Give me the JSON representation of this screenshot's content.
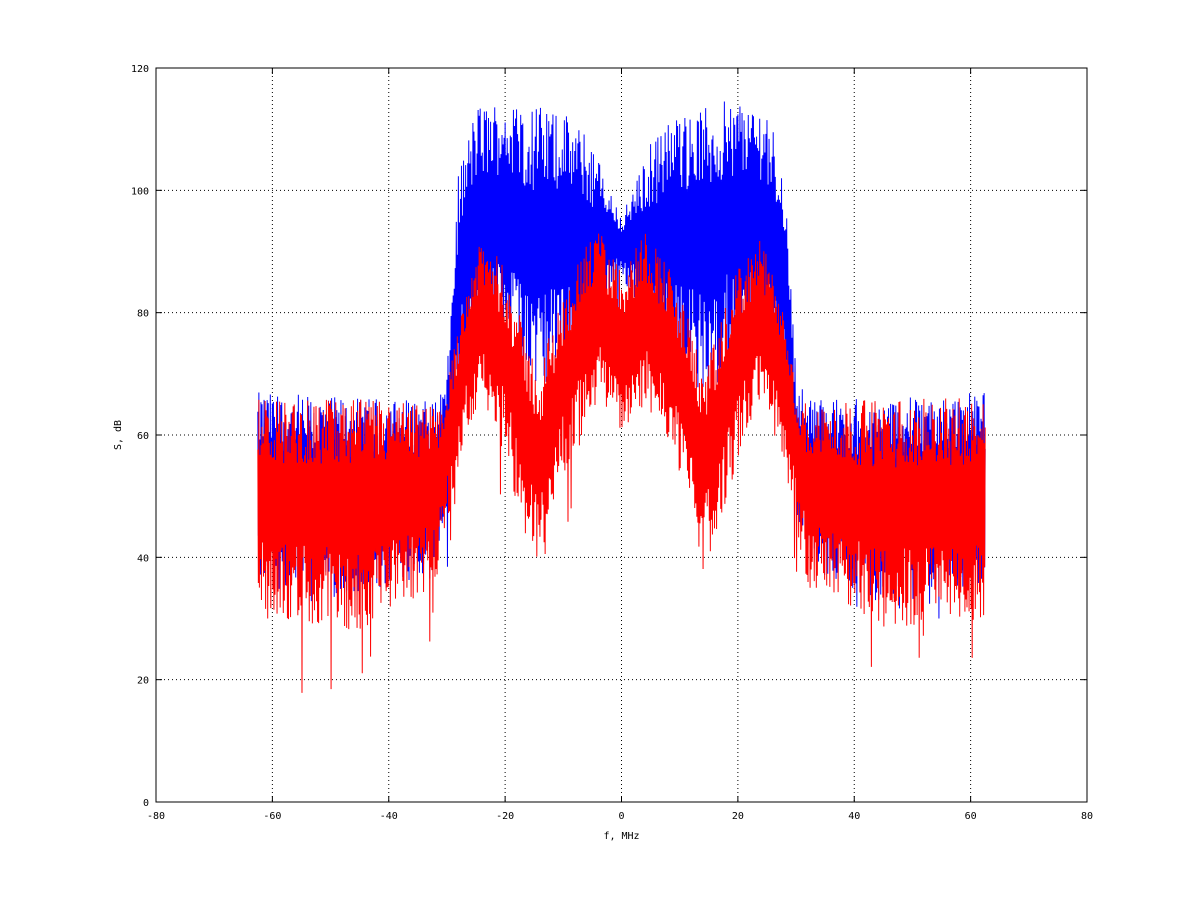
{
  "chart_data": {
    "type": "line",
    "title": "",
    "xlabel": "f, MHz",
    "ylabel": "S, dB",
    "xlim": [
      -80,
      80
    ],
    "ylim": [
      0,
      120
    ],
    "xticks": [
      -80,
      -60,
      -40,
      -20,
      0,
      20,
      40,
      60,
      80
    ],
    "yticks": [
      0,
      20,
      40,
      60,
      80,
      100,
      120
    ],
    "grid": true,
    "grid_style": "dotted",
    "x_range": [
      -62.5,
      62.5
    ],
    "series": [
      {
        "color": "#0000ff",
        "x": [
          -62.5,
          -45,
          -32,
          -30,
          -28,
          -25,
          -20,
          -15,
          -10,
          -5,
          -2,
          0,
          2,
          5,
          10,
          15,
          20,
          25,
          28,
          30,
          32,
          45,
          62.5
        ],
        "upper": [
          67,
          66,
          66,
          70,
          103,
          114,
          115,
          114,
          113,
          108,
          100,
          96,
          100,
          108,
          113,
          114,
          115,
          114,
          103,
          70,
          66,
          66,
          67
        ],
        "lower": [
          36,
          32,
          38,
          48,
          68,
          72,
          74,
          66,
          70,
          72,
          82,
          86,
          82,
          72,
          70,
          66,
          74,
          72,
          68,
          48,
          38,
          32,
          36
        ]
      },
      {
        "color": "#ff0000",
        "x": [
          -62.5,
          -45,
          -32,
          -30,
          -27,
          -24,
          -20,
          -17,
          -14,
          -12,
          -8,
          -4,
          -2,
          0,
          2,
          4,
          8,
          12,
          14,
          17,
          20,
          24,
          27,
          30,
          32,
          45,
          62.5
        ],
        "upper": [
          66,
          66,
          65,
          68,
          84,
          92,
          88,
          78,
          70,
          78,
          88,
          94,
          90,
          87,
          90,
          94,
          88,
          78,
          70,
          78,
          88,
          92,
          84,
          68,
          65,
          66,
          66
        ],
        "lower": [
          30,
          28,
          35,
          45,
          60,
          66,
          56,
          45,
          38,
          48,
          58,
          65,
          63,
          60,
          63,
          65,
          58,
          48,
          38,
          45,
          56,
          66,
          60,
          45,
          35,
          28,
          30
        ]
      }
    ]
  }
}
